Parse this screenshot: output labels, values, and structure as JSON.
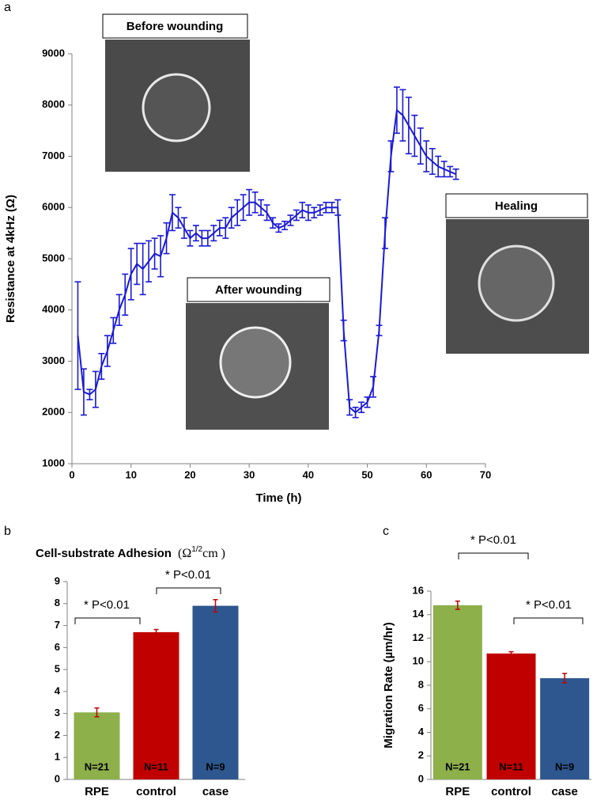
{
  "chart_data": [
    {
      "type": "line",
      "panel": "a",
      "x_label": "Time (h)",
      "y_label": "Resistance at 4kHz  (Ω)",
      "x": [
        1,
        2,
        3,
        4,
        5,
        6,
        7,
        8,
        9,
        10,
        11,
        12,
        13,
        14,
        15,
        16,
        17,
        18,
        19,
        20,
        21,
        22,
        23,
        24,
        25,
        26,
        27,
        28,
        29,
        30,
        31,
        32,
        33,
        34,
        35,
        36,
        37,
        38,
        39,
        40,
        41,
        42,
        43,
        44,
        45,
        46,
        47,
        48,
        49,
        50,
        51,
        52,
        53,
        54,
        55,
        56,
        57,
        58,
        59,
        60,
        61,
        62,
        63,
        64,
        65
      ],
      "series": [
        {
          "color": "#1a1ad6",
          "values": [
            3500,
            2400,
            2350,
            2450,
            2900,
            3200,
            3600,
            4000,
            4300,
            4700,
            4900,
            4800,
            4950,
            5100,
            5050,
            5400,
            5900,
            5800,
            5600,
            5400,
            5500,
            5400,
            5400,
            5500,
            5600,
            5600,
            5800,
            5900,
            6000,
            6100,
            6100,
            6000,
            5900,
            5700,
            5600,
            5650,
            5750,
            5850,
            5950,
            5900,
            5900,
            5950,
            6000,
            6000,
            6000,
            3600,
            2100,
            2000,
            2100,
            2200,
            2500,
            3600,
            5500,
            7000,
            7900,
            7800,
            7600,
            7400,
            7200,
            7000,
            6900,
            6800,
            6750,
            6700,
            6650
          ],
          "errors": [
            1050,
            450,
            100,
            350,
            250,
            300,
            250,
            300,
            400,
            500,
            400,
            500,
            400,
            300,
            400,
            300,
            350,
            200,
            200,
            150,
            150,
            150,
            150,
            150,
            150,
            200,
            200,
            250,
            250,
            250,
            200,
            150,
            150,
            100,
            80,
            80,
            100,
            100,
            150,
            150,
            100,
            100,
            100,
            100,
            150,
            200,
            150,
            100,
            100,
            100,
            200,
            100,
            300,
            300,
            450,
            500,
            550,
            400,
            350,
            300,
            250,
            200,
            150,
            100,
            100
          ]
        }
      ],
      "xlim": [
        0,
        70
      ],
      "xticks": [
        0,
        10,
        20,
        30,
        40,
        50,
        60,
        70
      ],
      "ylim": [
        1000,
        9000
      ],
      "yticks": [
        1000,
        2000,
        3000,
        4000,
        5000,
        6000,
        7000,
        8000,
        9000
      ],
      "insets": [
        "Before wounding",
        "After wounding",
        "Healing"
      ]
    },
    {
      "type": "bar",
      "panel": "b",
      "title": "Cell-substrate Adhesion",
      "unit": {
        "base": "(Ω",
        "sup": "1/2",
        "rest": "cm )"
      },
      "categories": [
        "RPE",
        "control",
        "case"
      ],
      "values": [
        3.05,
        6.7,
        7.9
      ],
      "errors": [
        0.2,
        0.12,
        0.28
      ],
      "colors": [
        "#8db04a",
        "#c00000",
        "#2e578f"
      ],
      "error_color": "#c00000",
      "bar_labels": [
        "N=21",
        "N=11",
        "N=9"
      ],
      "significance": [
        "* P<0.01",
        "* P<0.01"
      ],
      "ylim": [
        0,
        9
      ],
      "yticks": [
        0,
        1,
        2,
        3,
        4,
        5,
        6,
        7,
        8,
        9
      ]
    },
    {
      "type": "bar",
      "panel": "c",
      "y_label": "Migration Rate (µm/hr)",
      "categories": [
        "RPE",
        "control",
        "case"
      ],
      "values": [
        14.8,
        10.7,
        8.6
      ],
      "errors": [
        0.35,
        0.15,
        0.4
      ],
      "colors": [
        "#8db04a",
        "#c00000",
        "#2e578f"
      ],
      "error_color": "#c00000",
      "bar_labels": [
        "N=21",
        "N=11",
        "N=9"
      ],
      "significance": [
        "* P<0.01",
        "* P<0.01"
      ],
      "ylim": [
        0,
        16
      ],
      "yticks": [
        0,
        2,
        4,
        6,
        8,
        10,
        12,
        14,
        16
      ]
    }
  ]
}
